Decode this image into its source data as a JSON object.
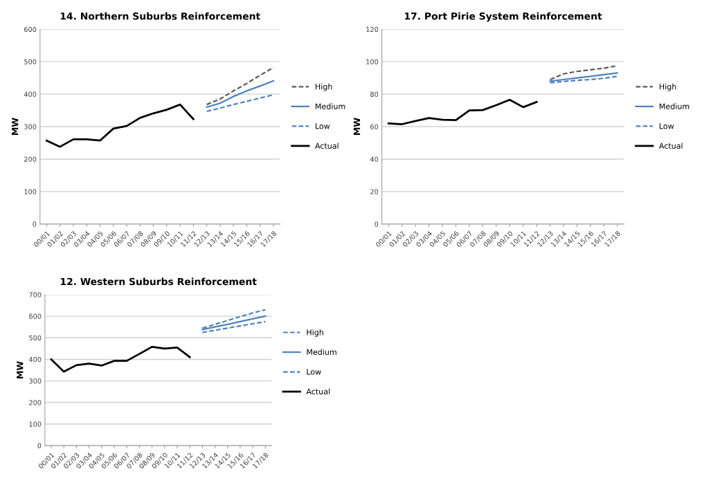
{
  "chart_data": [
    {
      "type": "line",
      "title": "14. Northern Suburbs Reinforcement",
      "ylabel": "MW",
      "categories": [
        "00/01",
        "01/02",
        "02/03",
        "03/04",
        "04/05",
        "05/06",
        "06/07",
        "07/08",
        "08/09",
        "09/10",
        "10/11",
        "11/12",
        "12/13",
        "13/14",
        "14/15",
        "15/16",
        "16/17",
        "17/18"
      ],
      "ylim": [
        0,
        600
      ],
      "yticks": [
        0,
        100,
        200,
        300,
        400,
        500,
        600
      ],
      "grid": "y",
      "legend": "right",
      "series": [
        {
          "name": "High",
          "color": "#595959",
          "line_style": "dashed",
          "values": [
            null,
            null,
            null,
            null,
            null,
            null,
            null,
            null,
            null,
            null,
            null,
            null,
            368,
            385,
            410,
            433,
            458,
            482
          ]
        },
        {
          "name": "Medium",
          "color": "#4f81bd",
          "line_style": "solid",
          "values": [
            null,
            null,
            null,
            null,
            null,
            null,
            null,
            null,
            null,
            null,
            null,
            null,
            360,
            372,
            393,
            410,
            425,
            441
          ]
        },
        {
          "name": "Low",
          "color": "#4f81bd",
          "line_style": "dashed",
          "values": [
            null,
            null,
            null,
            null,
            null,
            null,
            null,
            null,
            null,
            null,
            null,
            null,
            347,
            357,
            368,
            378,
            388,
            398
          ]
        },
        {
          "name": "Actual",
          "color": "#000000",
          "line_style": "solid",
          "values": [
            257,
            238,
            261,
            261,
            257,
            294,
            302,
            327,
            341,
            352,
            368,
            323,
            null,
            null,
            null,
            null,
            null,
            null
          ]
        }
      ]
    },
    {
      "type": "line",
      "title": "17. Port Pirie System Reinforcement",
      "ylabel": "MW",
      "categories": [
        "00/01",
        "01/02",
        "02/03",
        "03/04",
        "04/05",
        "05/06",
        "06/07",
        "07/08",
        "08/09",
        "09/10",
        "10/11",
        "11/12",
        "12/13",
        "13/14",
        "14/15",
        "15/16",
        "16/17",
        "17/18"
      ],
      "ylim": [
        0,
        120
      ],
      "yticks": [
        0,
        20,
        40,
        60,
        80,
        100,
        120
      ],
      "grid": "y",
      "legend": "right",
      "series": [
        {
          "name": "High",
          "color": "#595959",
          "line_style": "dashed",
          "values": [
            null,
            null,
            null,
            null,
            null,
            null,
            null,
            null,
            null,
            null,
            null,
            null,
            89,
            92.5,
            94,
            95,
            96,
            97.5
          ]
        },
        {
          "name": "Medium",
          "color": "#4f81bd",
          "line_style": "solid",
          "values": [
            null,
            null,
            null,
            null,
            null,
            null,
            null,
            null,
            null,
            null,
            null,
            null,
            88,
            89,
            90,
            91,
            92,
            93
          ]
        },
        {
          "name": "Low",
          "color": "#4f81bd",
          "line_style": "dashed",
          "values": [
            null,
            null,
            null,
            null,
            null,
            null,
            null,
            null,
            null,
            null,
            null,
            null,
            87,
            87.8,
            88.5,
            89,
            89.8,
            91
          ]
        },
        {
          "name": "Actual",
          "color": "#000000",
          "line_style": "solid",
          "values": [
            62,
            61.5,
            63.5,
            65.3,
            64.2,
            64,
            70,
            70.2,
            73.2,
            76.5,
            72,
            75.2,
            null,
            null,
            null,
            null,
            null,
            null
          ]
        }
      ]
    },
    {
      "type": "line",
      "title": "12. Western Suburbs Reinforcement",
      "ylabel": "MW",
      "categories": [
        "00/01",
        "01/02",
        "02/03",
        "03/04",
        "04/05",
        "05/06",
        "06/07",
        "07/08",
        "08/09",
        "09/10",
        "10/11",
        "11/12",
        "12/13",
        "13/14",
        "14/15",
        "15/16",
        "16/17",
        "17/18"
      ],
      "ylim": [
        0,
        700
      ],
      "yticks": [
        0,
        100,
        200,
        300,
        400,
        500,
        600,
        700
      ],
      "grid": "y",
      "legend": "right",
      "series": [
        {
          "name": "High",
          "color": "#4f81bd",
          "line_style": "dashed",
          "values": [
            null,
            null,
            null,
            null,
            null,
            null,
            null,
            null,
            null,
            null,
            null,
            null,
            545,
            562,
            580,
            598,
            615,
            630
          ]
        },
        {
          "name": "Medium",
          "color": "#4f81bd",
          "line_style": "solid",
          "values": [
            null,
            null,
            null,
            null,
            null,
            null,
            null,
            null,
            null,
            null,
            null,
            null,
            538,
            550,
            562,
            575,
            588,
            600
          ]
        },
        {
          "name": "Low",
          "color": "#4f81bd",
          "line_style": "dashed",
          "values": [
            null,
            null,
            null,
            null,
            null,
            null,
            null,
            null,
            null,
            null,
            null,
            null,
            525,
            535,
            545,
            555,
            565,
            575
          ]
        },
        {
          "name": "Actual",
          "color": "#000000",
          "line_style": "solid",
          "values": [
            400,
            343,
            373,
            380,
            371,
            393,
            393,
            425,
            458,
            450,
            455,
            410,
            null,
            null,
            null,
            null,
            null,
            null
          ]
        }
      ]
    }
  ]
}
